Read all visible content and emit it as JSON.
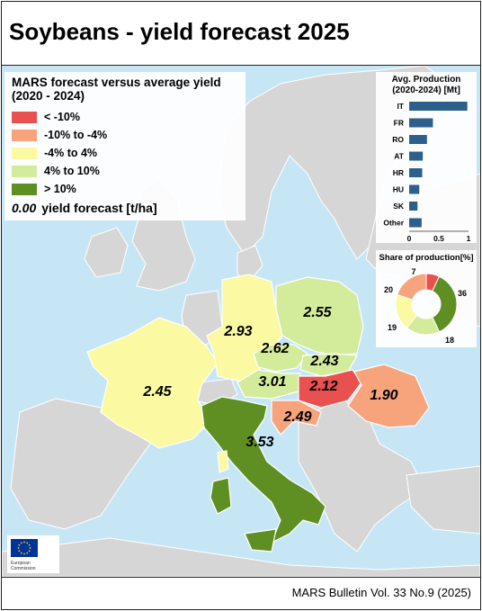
{
  "title": "Soybeans - yield forecast 2025",
  "footer": "MARS Bulletin Vol. 33 No.9 (2025)",
  "legend": {
    "title": "MARS forecast versus average yield (2020 - 2024)",
    "items": [
      {
        "label": "< -10%",
        "color": "#e8514f"
      },
      {
        "label": "-10% to -4%",
        "color": "#f7a47c"
      },
      {
        "label": "-4% to 4%",
        "color": "#fbf9a2"
      },
      {
        "label": "4% to 10%",
        "color": "#d3ec9b"
      },
      {
        "label": "> 10%",
        "color": "#5f8f22"
      }
    ],
    "yield_sample": "0.00",
    "yield_label": "yield forecast [t/ha]"
  },
  "countries": [
    {
      "code": "FR",
      "yield": "2.45",
      "class": 2
    },
    {
      "code": "DE",
      "yield": "2.93",
      "class": 2
    },
    {
      "code": "PL",
      "yield": "2.55",
      "class": 3
    },
    {
      "code": "CZ",
      "yield": "2.62",
      "class": 3
    },
    {
      "code": "SK",
      "yield": "2.43",
      "class": 3
    },
    {
      "code": "AT",
      "yield": "3.01",
      "class": 3
    },
    {
      "code": "HU",
      "yield": "2.12",
      "class": 0
    },
    {
      "code": "RO",
      "yield": "1.90",
      "class": 1
    },
    {
      "code": "HR",
      "yield": "2.49",
      "class": 1
    },
    {
      "code": "IT",
      "yield": "3.53",
      "class": 4
    }
  ],
  "avg_production": {
    "title": "Avg. Production (2020-2024) [Mt]",
    "type": "bar",
    "categories": [
      "IT",
      "FR",
      "RO",
      "AT",
      "HR",
      "HU",
      "SK",
      "Other"
    ],
    "values": [
      0.98,
      0.4,
      0.3,
      0.23,
      0.22,
      0.17,
      0.14,
      0.21
    ],
    "xlim": [
      0,
      1
    ],
    "ticks": [
      "0",
      "0.5",
      "1"
    ],
    "color": "#2c5f8a"
  },
  "share": {
    "title": "Share of production[%]",
    "type": "pie",
    "values": [
      7,
      36,
      18,
      19,
      20
    ],
    "labels": [
      "7",
      "36",
      "18",
      "19",
      "20"
    ],
    "colors": [
      "#e8514f",
      "#5f8f22",
      "#d3ec9b",
      "#fbf9a2",
      "#f7a47c"
    ]
  },
  "eu_logo": {
    "text1": "European",
    "text2": "Commission",
    "flag_color": "#003399",
    "star_color": "#ffcc00"
  }
}
